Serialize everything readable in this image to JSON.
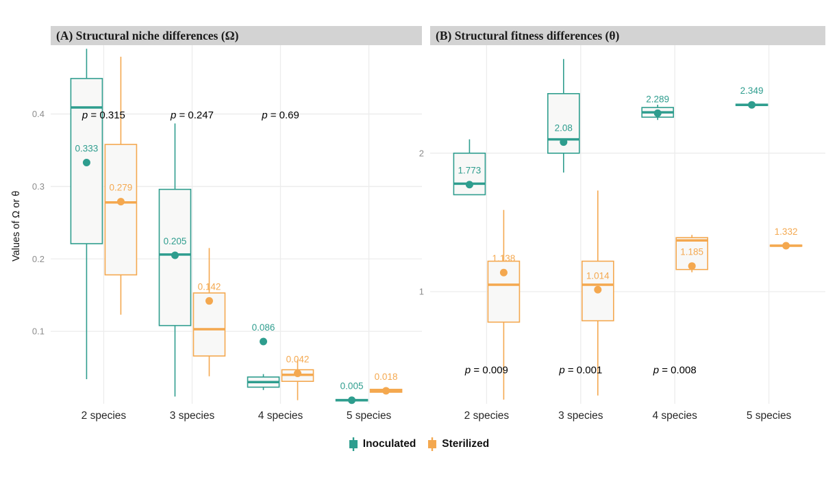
{
  "figure": {
    "y_axis_title": "Values of Ω or θ",
    "legend": [
      {
        "label": "Inoculated",
        "color": "#2e9d8e"
      },
      {
        "label": "Sterilized",
        "color": "#f4a84f"
      }
    ],
    "colors": {
      "inoculated": "#2e9d8e",
      "sterilized": "#f4a84f",
      "grid": "#ececec",
      "box_fill": "#f8f8f7",
      "strip_bg": "#d3d3d3",
      "strip_text": "#1a1a1a",
      "tick_label": "#8c8c8c",
      "axis_label": "#262626",
      "p_value": "#000000",
      "background": "#ffffff"
    }
  },
  "chart_data": [
    {
      "type": "boxplot",
      "panel": "A",
      "title": "(A) Structural niche differences (Ω)",
      "categories": [
        "2 species",
        "3 species",
        "4 species",
        "5 species"
      ],
      "ylim": [
        0,
        0.495
      ],
      "yticks": [
        0.1,
        0.2,
        0.3,
        0.4
      ],
      "grid": true,
      "series": [
        {
          "name": "Inoculated",
          "color": "#2e9d8e",
          "boxes": [
            {
              "whisker_low": 0.034,
              "q1": 0.221,
              "median": 0.409,
              "q3": 0.449,
              "whisker_high": 0.49,
              "mean": 0.333,
              "mean_label": "0.333"
            },
            {
              "whisker_low": 0.01,
              "q1": 0.108,
              "median": 0.206,
              "q3": 0.296,
              "whisker_high": 0.387,
              "mean": 0.205,
              "mean_label": "0.205"
            },
            {
              "whisker_low": 0.019,
              "q1": 0.023,
              "median": 0.03,
              "q3": 0.037,
              "whisker_high": 0.041,
              "mean": 0.086,
              "mean_label": "0.086"
            },
            {
              "whisker_low": 0.003,
              "q1": 0.004,
              "median": 0.005,
              "q3": 0.006,
              "whisker_high": 0.007,
              "mean": 0.005,
              "mean_label": "0.005"
            }
          ]
        },
        {
          "name": "Sterilized",
          "color": "#f4a84f",
          "boxes": [
            {
              "whisker_low": 0.123,
              "q1": 0.178,
              "median": 0.278,
              "q3": 0.358,
              "whisker_high": 0.479,
              "mean": 0.279,
              "mean_label": "0.279"
            },
            {
              "whisker_low": 0.038,
              "q1": 0.066,
              "median": 0.103,
              "q3": 0.153,
              "whisker_high": 0.215,
              "mean": 0.142,
              "mean_label": "0.142"
            },
            {
              "whisker_low": 0.005,
              "q1": 0.031,
              "median": 0.04,
              "q3": 0.047,
              "whisker_high": 0.061,
              "mean": 0.042,
              "mean_label": "0.042"
            },
            {
              "whisker_low": 0.014,
              "q1": 0.016,
              "median": 0.018,
              "q3": 0.02,
              "whisker_high": 0.022,
              "mean": 0.018,
              "mean_label": "0.018"
            }
          ]
        }
      ],
      "annotations": [
        {
          "category_index": 0,
          "y": 0.394,
          "text": "p = 0.315"
        },
        {
          "category_index": 1,
          "y": 0.394,
          "text": "p = 0.247"
        },
        {
          "category_index": 2,
          "y": 0.394,
          "text": "p = 0.69"
        }
      ]
    },
    {
      "type": "boxplot",
      "panel": "B",
      "title": "(B) Structural fitness differences (θ)",
      "categories": [
        "2 species",
        "3 species",
        "4 species",
        "5 species"
      ],
      "ylim": [
        0.19,
        2.78
      ],
      "yticks": [
        1,
        2
      ],
      "grid": true,
      "series": [
        {
          "name": "Inoculated",
          "color": "#2e9d8e",
          "boxes": [
            {
              "whisker_low": 1.7,
              "q1": 1.7,
              "median": 1.78,
              "q3": 2.0,
              "whisker_high": 2.1,
              "mean": 1.773,
              "mean_label": "1.773"
            },
            {
              "whisker_low": 1.86,
              "q1": 2.0,
              "median": 2.1,
              "q3": 2.43,
              "whisker_high": 2.68,
              "mean": 2.08,
              "mean_label": "2.08"
            },
            {
              "whisker_low": 2.24,
              "q1": 2.26,
              "median": 2.295,
              "q3": 2.33,
              "whisker_high": 2.35,
              "mean": 2.289,
              "mean_label": "2.289"
            },
            {
              "whisker_low": 2.34,
              "q1": 2.344,
              "median": 2.349,
              "q3": 2.354,
              "whisker_high": 2.358,
              "mean": 2.349,
              "mean_label": "2.349"
            }
          ]
        },
        {
          "name": "Sterilized",
          "color": "#f4a84f",
          "boxes": [
            {
              "whisker_low": 0.22,
              "q1": 0.78,
              "median": 1.05,
              "q3": 1.22,
              "whisker_high": 1.59,
              "mean": 1.138,
              "mean_label": "1.138"
            },
            {
              "whisker_low": 0.25,
              "q1": 0.79,
              "median": 1.05,
              "q3": 1.22,
              "whisker_high": 1.73,
              "mean": 1.014,
              "mean_label": "1.014"
            },
            {
              "whisker_low": 1.14,
              "q1": 1.16,
              "median": 1.37,
              "q3": 1.39,
              "whisker_high": 1.41,
              "mean": 1.185,
              "mean_label": "1.185"
            },
            {
              "whisker_low": 1.325,
              "q1": 1.328,
              "median": 1.332,
              "q3": 1.336,
              "whisker_high": 1.34,
              "mean": 1.332,
              "mean_label": "1.332"
            }
          ]
        }
      ],
      "annotations": [
        {
          "category_index": 0,
          "y": 0.41,
          "text": "p = 0.009"
        },
        {
          "category_index": 1,
          "y": 0.41,
          "text": "p = 0.001"
        },
        {
          "category_index": 2,
          "y": 0.41,
          "text": "p = 0.008"
        }
      ]
    }
  ]
}
